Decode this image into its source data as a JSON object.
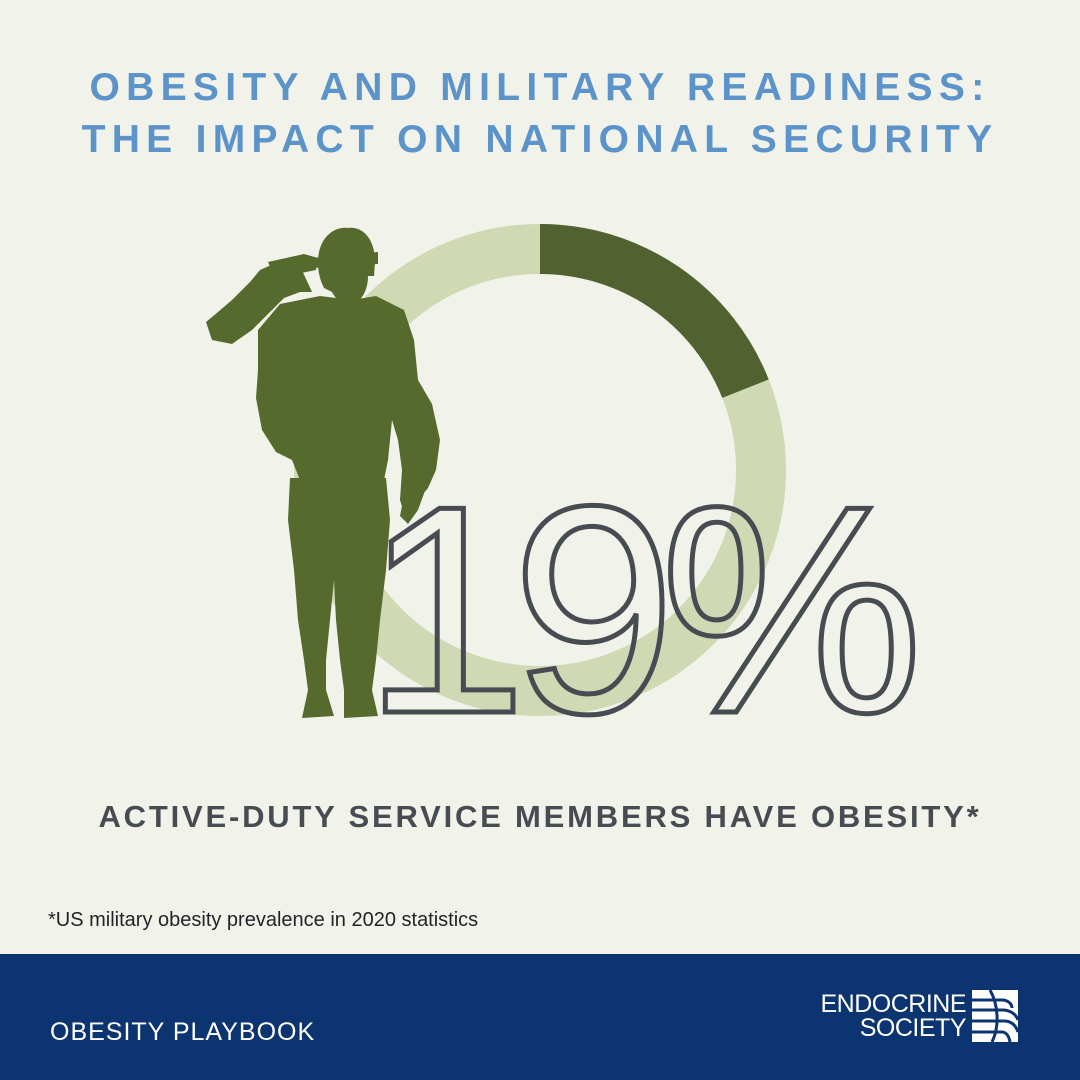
{
  "title": {
    "line1": "OBESITY AND MILITARY READINESS:",
    "line2": "THE IMPACT ON NATIONAL SECURITY"
  },
  "stat": {
    "value": "19%",
    "fraction": 0.19
  },
  "caption": "ACTIVE-DUTY SERVICE MEMBERS HAVE OBESITY*",
  "footnote": "*US military obesity prevalence in 2020 statistics",
  "footer": {
    "label": "OBESITY PLAYBOOK",
    "logo_line1": "ENDOCRINE",
    "logo_line2": "SOCIETY"
  },
  "colors": {
    "background": "#f1f3ea",
    "title": "#5c93c9",
    "donut_filled": "#526130",
    "donut_track": "#cfd9b4",
    "soldier": "#566a2e",
    "number": "#474c53",
    "footer": "#0c3470"
  },
  "icons": {
    "soldier": "saluting-soldier-silhouette",
    "logo": "endocrine-society-logo-mark"
  }
}
